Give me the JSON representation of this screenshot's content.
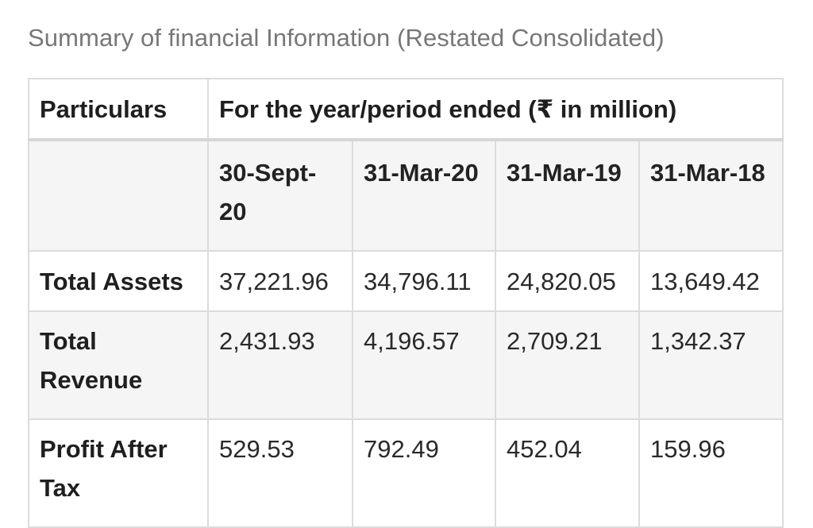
{
  "caption": "Summary of financial Information (Restated Consolidated)",
  "table": {
    "header": {
      "particulars": "Particulars",
      "period": "For the year/period ended (₹ in million)"
    },
    "dates": [
      "30-Sept-20",
      "31-Mar-20",
      "31-Mar-19",
      "31-Mar-18"
    ],
    "rows": [
      {
        "label": "Total Assets",
        "values": [
          "37,221.96",
          "34,796.11",
          "24,820.05",
          "13,649.42"
        ]
      },
      {
        "label": "Total Revenue",
        "values": [
          "2,431.93",
          "4,196.57",
          "2,709.21",
          "1,342.37"
        ]
      },
      {
        "label": "Profit After Tax",
        "values": [
          "529.53",
          "792.49",
          "452.04",
          "159.96"
        ]
      }
    ]
  }
}
